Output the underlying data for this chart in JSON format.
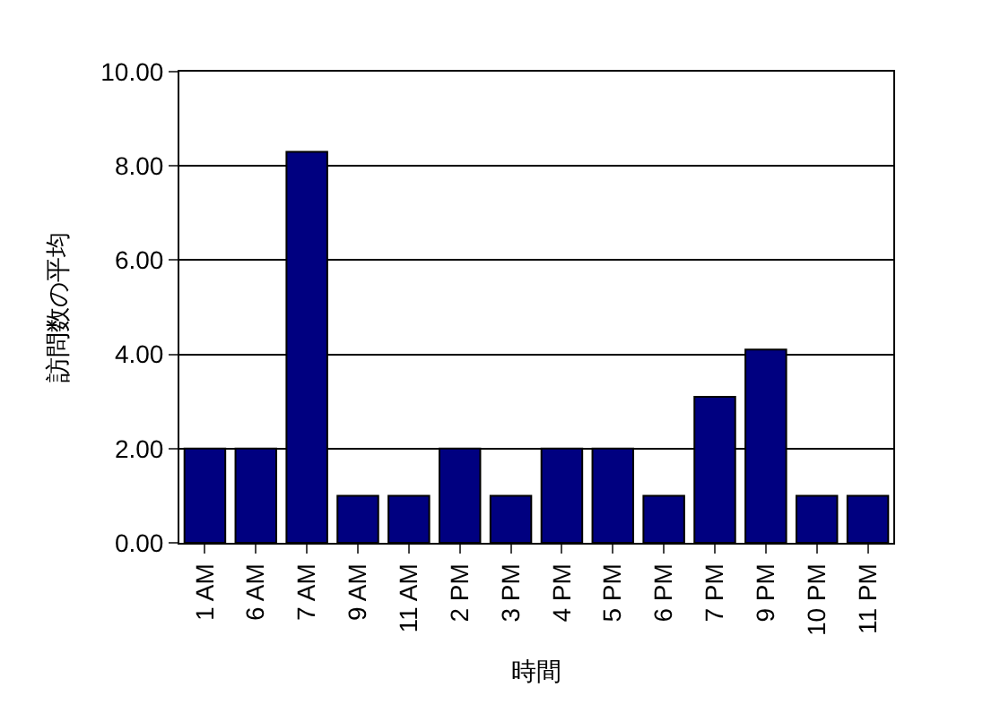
{
  "chart_data": {
    "type": "bar",
    "xlabel": "時間",
    "ylabel": "訪問数の平均",
    "categories": [
      "1 AM",
      "6 AM",
      "7 AM",
      "9 AM",
      "11 AM",
      "2 PM",
      "3 PM",
      "4 PM",
      "5 PM",
      "6 PM",
      "7 PM",
      "9 PM",
      "10 PM",
      "11 PM"
    ],
    "values": [
      2,
      2,
      8.3,
      1,
      1,
      2,
      1,
      2,
      2,
      1,
      3.1,
      4.1,
      1,
      1
    ],
    "color": "#000080",
    "ylim": [
      0,
      10
    ],
    "yticks": [
      {
        "value": 0,
        "label": "0.00"
      },
      {
        "value": 2,
        "label": "2.00"
      },
      {
        "value": 4,
        "label": "4.00"
      },
      {
        "value": 6,
        "label": "6.00"
      },
      {
        "value": 8,
        "label": "8.00"
      },
      {
        "value": 10,
        "label": "10.00"
      }
    ],
    "grid": "y"
  }
}
